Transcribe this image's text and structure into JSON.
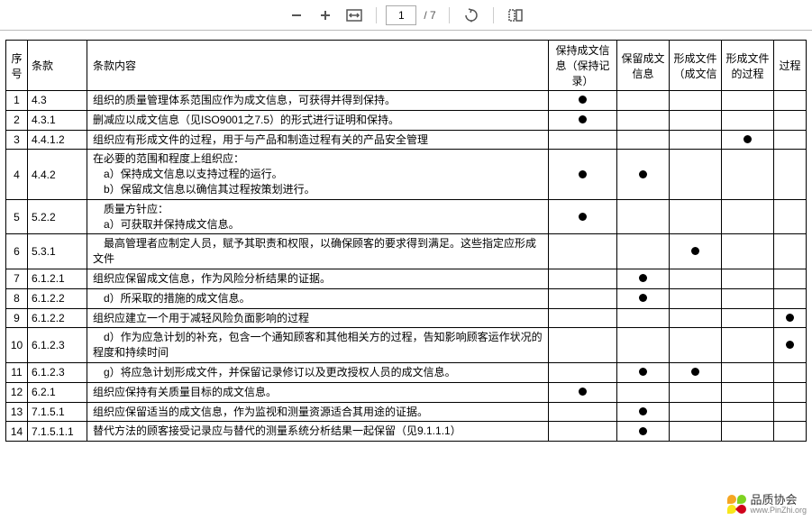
{
  "toolbar": {
    "page_current": "1",
    "page_total": "/ 7"
  },
  "headers": {
    "idx": "序号",
    "clause": "条款",
    "content": "条款内容",
    "c1": "保持成文信息（保持记录）",
    "c2": "保留成文信息",
    "c3": "形成文件（成文信",
    "c4": "形成文件的过程",
    "c5": "过程"
  },
  "rows": [
    {
      "n": "1",
      "clause": "4.3",
      "content": "组织的质量管理体系范围应作为成文信息，可获得并得到保持。",
      "m": [
        1,
        0,
        0,
        0,
        0
      ]
    },
    {
      "n": "2",
      "clause": "4.3.1",
      "content": "删减应以成文信息（见ISO9001之7.5）的形式进行证明和保持。",
      "m": [
        1,
        0,
        0,
        0,
        0
      ]
    },
    {
      "n": "3",
      "clause": "4.4.1.2",
      "content": "组织应有形成文件的过程，用于与产品和制造过程有关的产品安全管理",
      "m": [
        0,
        0,
        0,
        1,
        0
      ]
    },
    {
      "n": "4",
      "clause": "4.4.2",
      "content": "在必要的范围和程度上组织应：\n　a）保持成文信息以支持过程的运行。\n　b）保留成文信息以确信其过程按策划进行。",
      "m": [
        1,
        1,
        0,
        0,
        0
      ]
    },
    {
      "n": "5",
      "clause": "5.2.2",
      "content": "　质量方针应：\n　a）可获取并保持成文信息。",
      "m": [
        1,
        0,
        0,
        0,
        0
      ]
    },
    {
      "n": "6",
      "clause": "5.3.1",
      "content": "　最高管理者应制定人员，赋予其职责和权限，以确保顾客的要求得到满足。这些指定应形成文件",
      "m": [
        0,
        0,
        1,
        0,
        0
      ]
    },
    {
      "n": "7",
      "clause": "6.1.2.1",
      "content": "组织应保留成文信息，作为风险分析结果的证据。",
      "m": [
        0,
        1,
        0,
        0,
        0
      ]
    },
    {
      "n": "8",
      "clause": "6.1.2.2",
      "content": "　d）所采取的措施的成文信息。",
      "m": [
        0,
        1,
        0,
        0,
        0
      ]
    },
    {
      "n": "9",
      "clause": "6.1.2.2",
      "content": "组织应建立一个用于减轻风险负面影响的过程",
      "m": [
        0,
        0,
        0,
        0,
        1
      ]
    },
    {
      "n": "10",
      "clause": "6.1.2.3",
      "content": "　d）作为应急计划的补充，包含一个通知顾客和其他相关方的过程，告知影响顾客运作状况的程度和持续时间",
      "m": [
        0,
        0,
        0,
        0,
        1
      ]
    },
    {
      "n": "11",
      "clause": "6.1.2.3",
      "content": "　g）将应急计划形成文件，并保留记录修订以及更改授权人员的成文信息。",
      "m": [
        0,
        1,
        1,
        0,
        0
      ]
    },
    {
      "n": "12",
      "clause": "6.2.1",
      "content": "组织应保持有关质量目标的成文信息。",
      "m": [
        1,
        0,
        0,
        0,
        0
      ]
    },
    {
      "n": "13",
      "clause": "7.1.5.1",
      "content": "组织应保留适当的成文信息，作为监视和测量资源适合其用途的证据。",
      "m": [
        0,
        1,
        0,
        0,
        0
      ]
    },
    {
      "n": "14",
      "clause": "7.1.5.1.1",
      "content": "替代方法的顾客接受记录应与替代的测量系统分析结果一起保留（见9.1.1.1）",
      "m": [
        0,
        1,
        0,
        0,
        0
      ]
    }
  ],
  "watermark": {
    "cn": "品质协会",
    "en": "www.PinZhi.org"
  }
}
